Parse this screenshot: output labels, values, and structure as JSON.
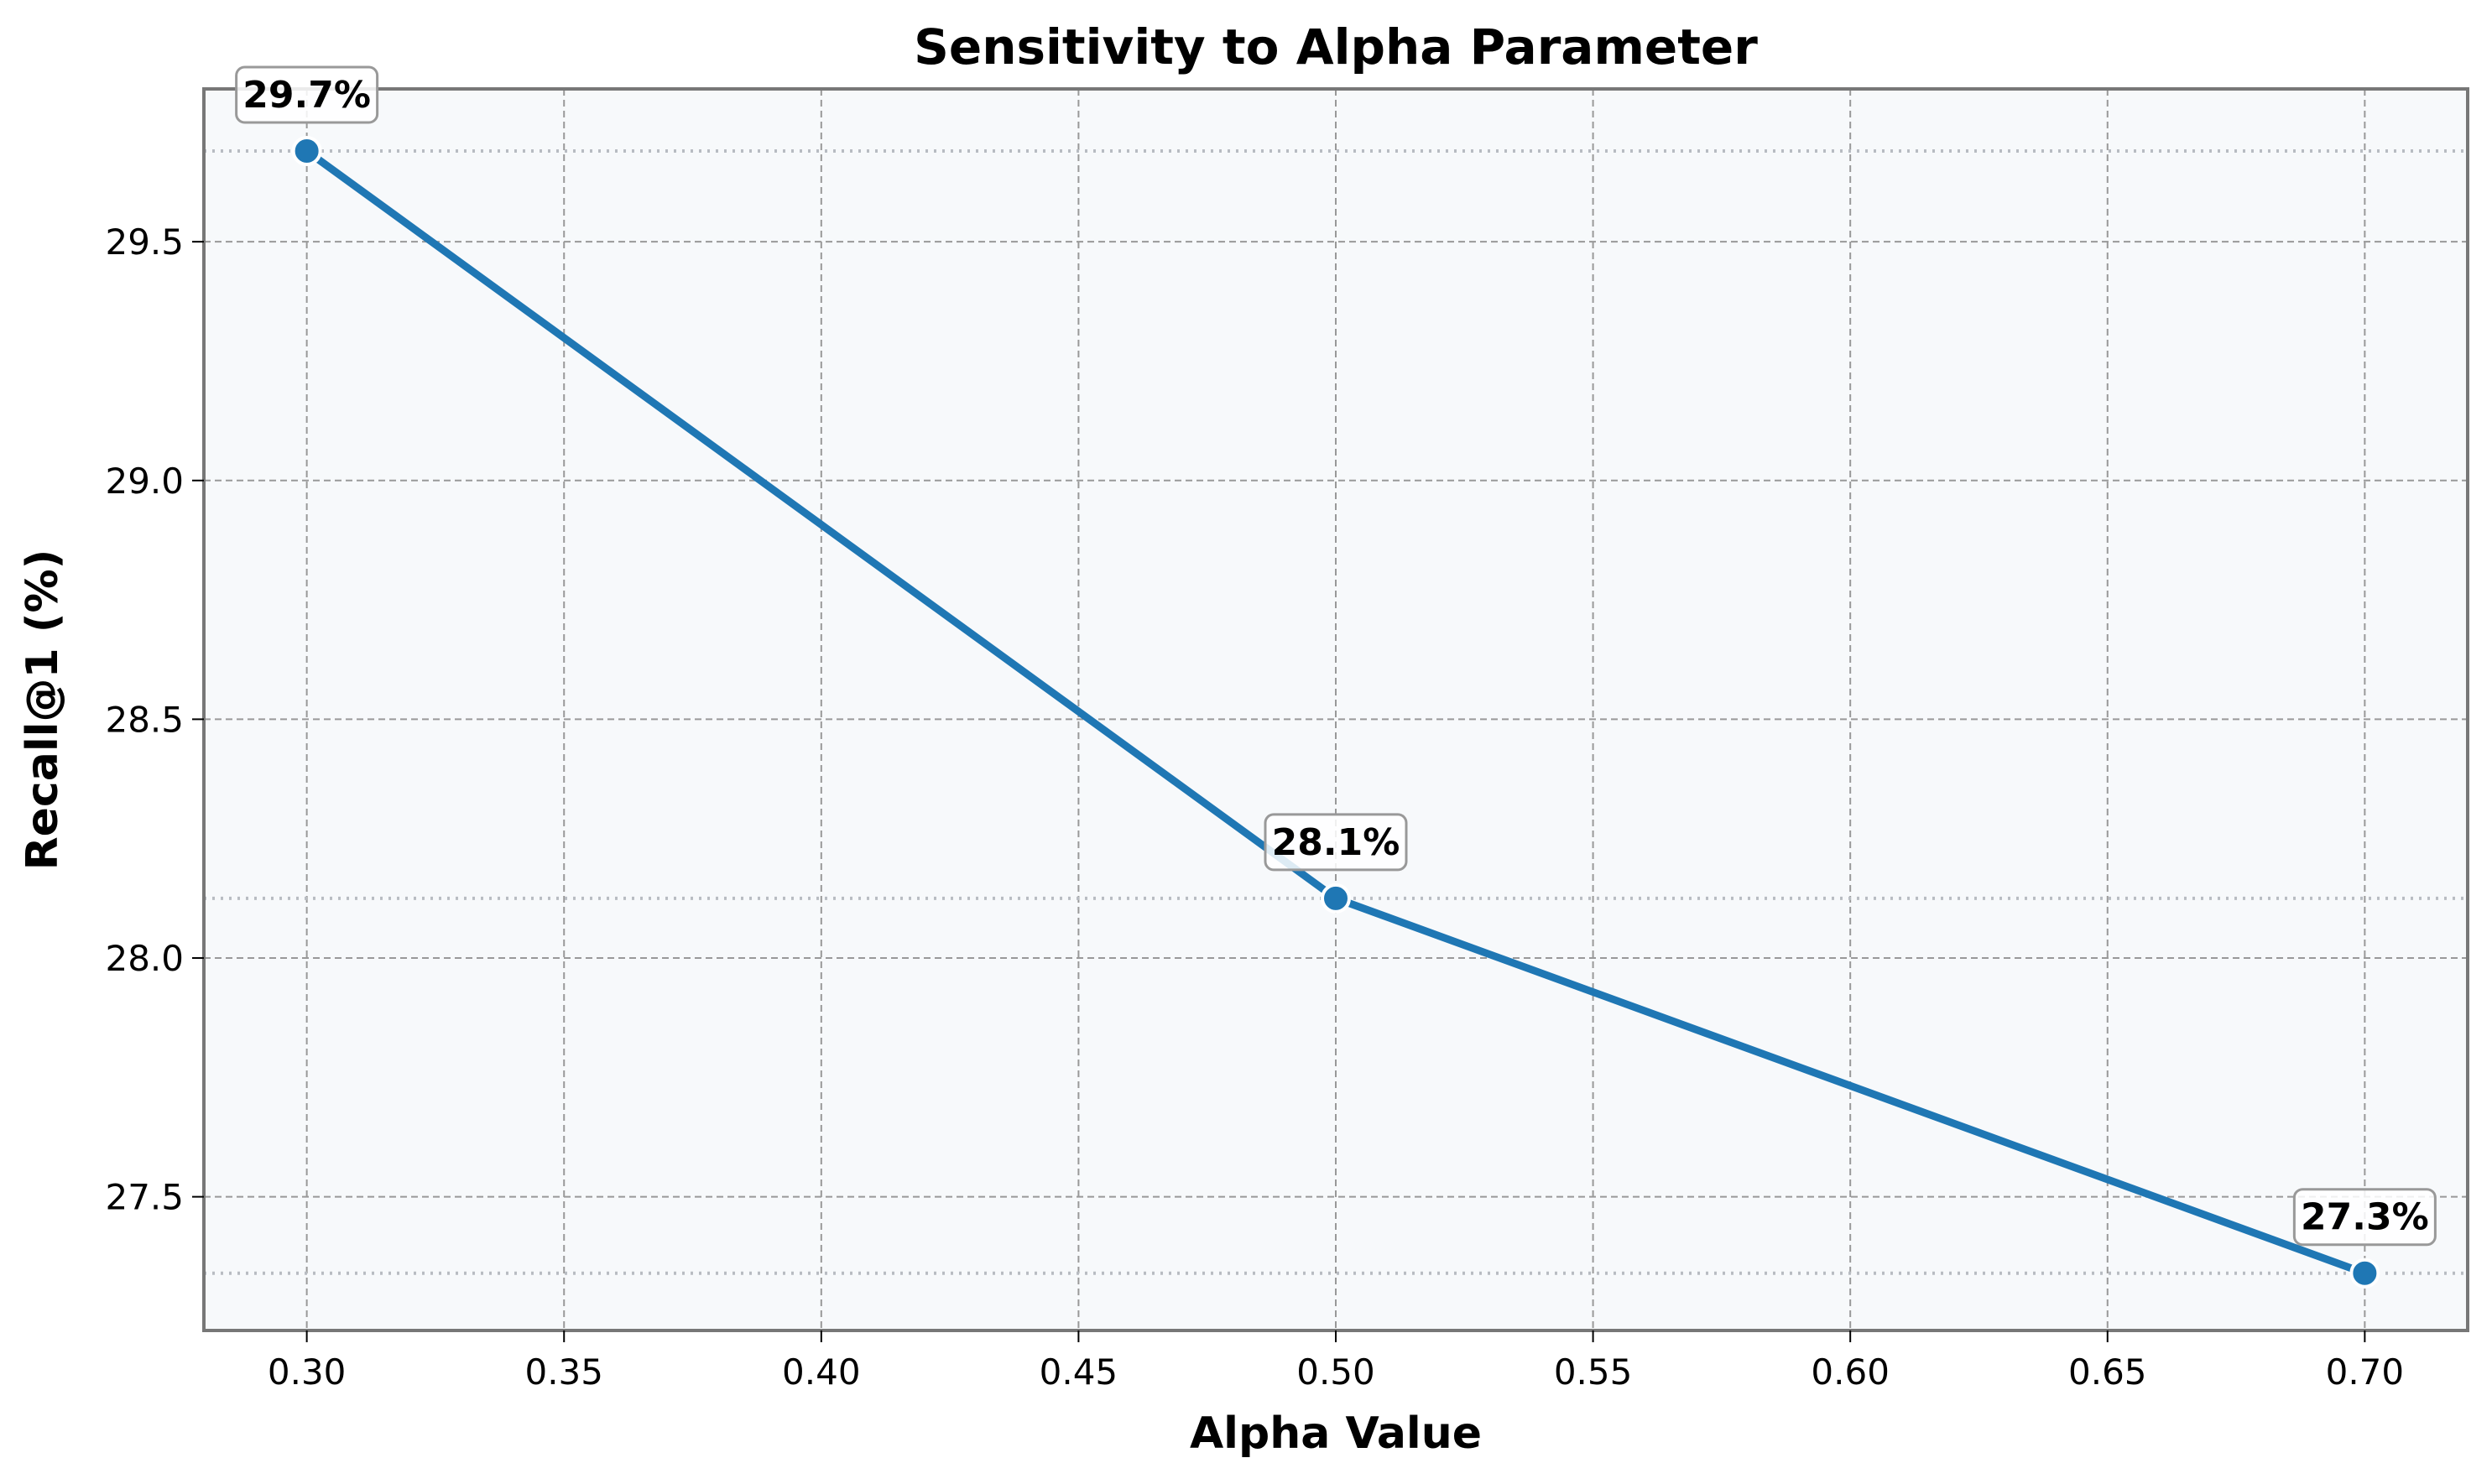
{
  "chart_data": {
    "type": "line",
    "title": "Sensitivity to Alpha Parameter",
    "xlabel": "Alpha Value",
    "ylabel": "Recall@1 (%)",
    "x": [
      0.3,
      0.5,
      0.7
    ],
    "series": [
      {
        "values": [
          29.69,
          28.125,
          27.34
        ],
        "labels": [
          "29.7%",
          "28.1%",
          "27.3%"
        ]
      }
    ],
    "xlim": [
      0.28,
      0.72
    ],
    "ylim": [
      27.22,
      29.82
    ],
    "xticks": [
      0.3,
      0.35,
      0.4,
      0.45,
      0.5,
      0.55,
      0.6,
      0.65,
      0.7
    ],
    "xtick_labels": [
      "0.30",
      "0.35",
      "0.40",
      "0.45",
      "0.50",
      "0.55",
      "0.60",
      "0.65",
      "0.70"
    ],
    "yticks": [
      27.5,
      28.0,
      28.5,
      29.0,
      29.5
    ],
    "ytick_labels": [
      "27.5",
      "28.0",
      "28.5",
      "29.0",
      "29.5"
    ],
    "grid": true,
    "reference_lines": [
      29.69,
      28.125,
      27.34
    ],
    "colors": {
      "line": "#1f77b4",
      "plot_background": "#f7f9fb",
      "grid": "#999999",
      "reference": "#b8bcc2",
      "frame": "#777777",
      "label_box_border": "#999999"
    }
  }
}
